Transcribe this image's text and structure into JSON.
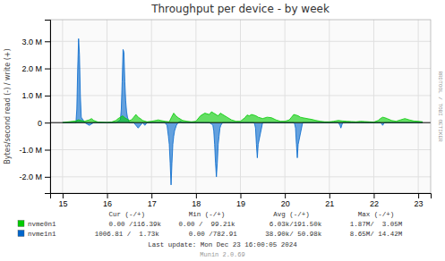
{
  "chart_data": {
    "type": "area",
    "title": "Throughput per device - by week",
    "ylabel": "Bytes/second read (-) / write (+)",
    "xlim": [
      14.72,
      23.28
    ],
    "ylim": [
      -2600000,
      3800000
    ],
    "xticks": [
      15,
      16,
      17,
      18,
      19,
      20,
      21,
      22,
      23
    ],
    "yticks": [
      {
        "value": -2000000,
        "label": "-2.0 M"
      },
      {
        "value": -1000000,
        "label": "-1.0 M"
      },
      0,
      {
        "value": 1000000,
        "label": "1.0 M"
      },
      {
        "value": 2000000,
        "label": "2.0 M"
      },
      {
        "value": 3000000,
        "label": "3.0 M"
      }
    ],
    "grid": true,
    "legend": "bottom",
    "annotations": [
      "Cur (-/+)",
      "Min (-/+)",
      "Avg (-/+)",
      "Max (-/+)",
      "    0.00 /116.39k",
      "0.00 /  99.21k",
      "  6.03k/191.50k",
      "1.87M/  3.05M",
      "1006.81 /  1.73k",
      "   0.00 /782.91",
      " 38.90k/ 50.98k",
      "8.65M/ 14.42M",
      "Last update: Mon Dec 23 16:00:05 2024",
      "Munin 2.0.69",
      "RRDTOOL / TOBI OETIKER"
    ],
    "series": [
      {
        "name": "nvme0n1",
        "color": "#00cc00",
        "x": [
          15.0,
          15.3,
          15.35,
          15.5,
          15.55,
          15.6,
          15.65,
          15.7,
          15.75,
          15.8,
          16.0,
          16.1,
          16.2,
          16.25,
          16.3,
          16.35,
          16.4,
          16.45,
          16.5,
          16.55,
          16.6,
          16.65,
          16.7,
          16.75,
          16.8,
          16.9,
          17.0,
          17.1,
          17.15,
          17.2,
          17.3,
          17.4,
          17.45,
          17.5,
          17.55,
          17.6,
          17.7,
          17.8,
          17.9,
          18.0,
          18.1,
          18.2,
          18.3,
          18.35,
          18.4,
          18.45,
          18.5,
          18.55,
          18.6,
          18.7,
          18.8,
          18.9,
          19.0,
          19.1,
          19.15,
          19.2,
          19.25,
          19.3,
          19.35,
          19.4,
          19.5,
          19.6,
          19.7,
          19.8,
          19.9,
          20.0,
          20.1,
          20.15,
          20.2,
          20.25,
          20.3,
          20.35,
          20.4,
          20.5,
          20.6,
          20.7,
          20.8,
          20.9,
          21.0,
          21.1,
          21.2,
          21.3,
          21.4,
          21.5,
          21.6,
          21.7,
          21.8,
          21.9,
          22.0,
          22.1,
          22.15,
          22.2,
          22.25,
          22.3,
          22.4,
          22.5,
          22.6,
          22.7,
          22.8,
          22.9,
          23.0,
          23.1
        ],
        "values": [
          5000,
          60000,
          100000,
          50000,
          80000,
          100000,
          150000,
          80000,
          50000,
          20000,
          10000,
          20000,
          80000,
          150000,
          200000,
          250000,
          180000,
          130000,
          80000,
          100000,
          200000,
          300000,
          200000,
          150000,
          80000,
          30000,
          50000,
          80000,
          100000,
          80000,
          50000,
          30000,
          200000,
          350000,
          250000,
          180000,
          80000,
          50000,
          30000,
          50000,
          250000,
          350000,
          300000,
          400000,
          350000,
          300000,
          250000,
          350000,
          300000,
          200000,
          100000,
          50000,
          50000,
          180000,
          280000,
          250000,
          300000,
          280000,
          250000,
          200000,
          150000,
          200000,
          180000,
          100000,
          50000,
          50000,
          100000,
          200000,
          300000,
          280000,
          250000,
          200000,
          180000,
          150000,
          120000,
          80000,
          50000,
          30000,
          30000,
          50000,
          80000,
          60000,
          50000,
          40000,
          30000,
          50000,
          40000,
          30000,
          20000,
          80000,
          150000,
          200000,
          180000,
          150000,
          80000,
          50000,
          100000,
          150000,
          100000,
          60000,
          50000,
          30000
        ]
      },
      {
        "name": "nvme1n1",
        "color": "#0066cc",
        "x": [
          15.0,
          15.3,
          15.32,
          15.34,
          15.36,
          15.38,
          15.4,
          15.42,
          15.5,
          15.6,
          15.7,
          15.8,
          16.0,
          16.2,
          16.3,
          16.32,
          16.34,
          16.36,
          16.38,
          16.4,
          16.42,
          16.44,
          16.46,
          16.48,
          16.5,
          16.6,
          16.65,
          16.7,
          16.75,
          16.8,
          16.85,
          16.9,
          17.0,
          17.1,
          17.2,
          17.3,
          17.35,
          17.38,
          17.4,
          17.42,
          17.44,
          17.46,
          17.48,
          17.5,
          17.52,
          17.54,
          17.56,
          17.58,
          17.6,
          17.65,
          17.7,
          17.8,
          17.9,
          18.0,
          18.1,
          18.2,
          18.3,
          18.35,
          18.38,
          18.4,
          18.42,
          18.44,
          18.46,
          18.48,
          18.5,
          18.52,
          18.54,
          18.56,
          18.58,
          18.6,
          18.7,
          18.8,
          18.9,
          19.0,
          19.1,
          19.2,
          19.3,
          19.32,
          19.34,
          19.36,
          19.38,
          19.4,
          19.5,
          19.6,
          19.7,
          19.8,
          19.9,
          20.0,
          20.1,
          20.15,
          20.2,
          20.22,
          20.24,
          20.26,
          20.28,
          20.3,
          20.4,
          20.5,
          20.6,
          20.7,
          20.8,
          20.9,
          21.0,
          21.1,
          21.15,
          21.2,
          21.22,
          21.24,
          21.26,
          21.28,
          21.3,
          21.4,
          21.5,
          21.6,
          21.7,
          21.8,
          21.9,
          22.0,
          22.1,
          22.15,
          22.18,
          22.2,
          22.22,
          22.24,
          22.3,
          22.4,
          22.5,
          22.6,
          22.7,
          22.8,
          22.9,
          23.0,
          23.1
        ],
        "values": [
          0,
          0,
          500000,
          2000000,
          3100000,
          2500000,
          1000000,
          200000,
          0,
          -100000,
          0,
          0,
          0,
          0,
          100000,
          500000,
          1500000,
          2700000,
          2600000,
          1500000,
          800000,
          400000,
          200000,
          100000,
          0,
          0,
          -100000,
          -200000,
          -100000,
          0,
          -100000,
          0,
          0,
          0,
          0,
          0,
          -100000,
          -500000,
          -800000,
          -1500000,
          -2300000,
          -1500000,
          -800000,
          -500000,
          -300000,
          -200000,
          -100000,
          -50000,
          0,
          50000,
          0,
          0,
          0,
          0,
          0,
          0,
          0,
          -50000,
          -100000,
          -300000,
          -800000,
          -1500000,
          -2000000,
          -1500000,
          -800000,
          -500000,
          -200000,
          -100000,
          -50000,
          0,
          0,
          0,
          0,
          0,
          0,
          0,
          0,
          -50000,
          -200000,
          -800000,
          -1300000,
          -800000,
          0,
          0,
          0,
          0,
          0,
          0,
          0,
          0,
          0,
          -50000,
          -200000,
          -800000,
          -1300000,
          -800000,
          0,
          0,
          0,
          0,
          0,
          0,
          0,
          0,
          0,
          0,
          -50000,
          -100000,
          -200000,
          -100000,
          0,
          0,
          0,
          0,
          0,
          0,
          0,
          0,
          0,
          0,
          -50000,
          -100000,
          -50000,
          0,
          0,
          0,
          0,
          0,
          0,
          0,
          0,
          0,
          0
        ]
      }
    ]
  }
}
